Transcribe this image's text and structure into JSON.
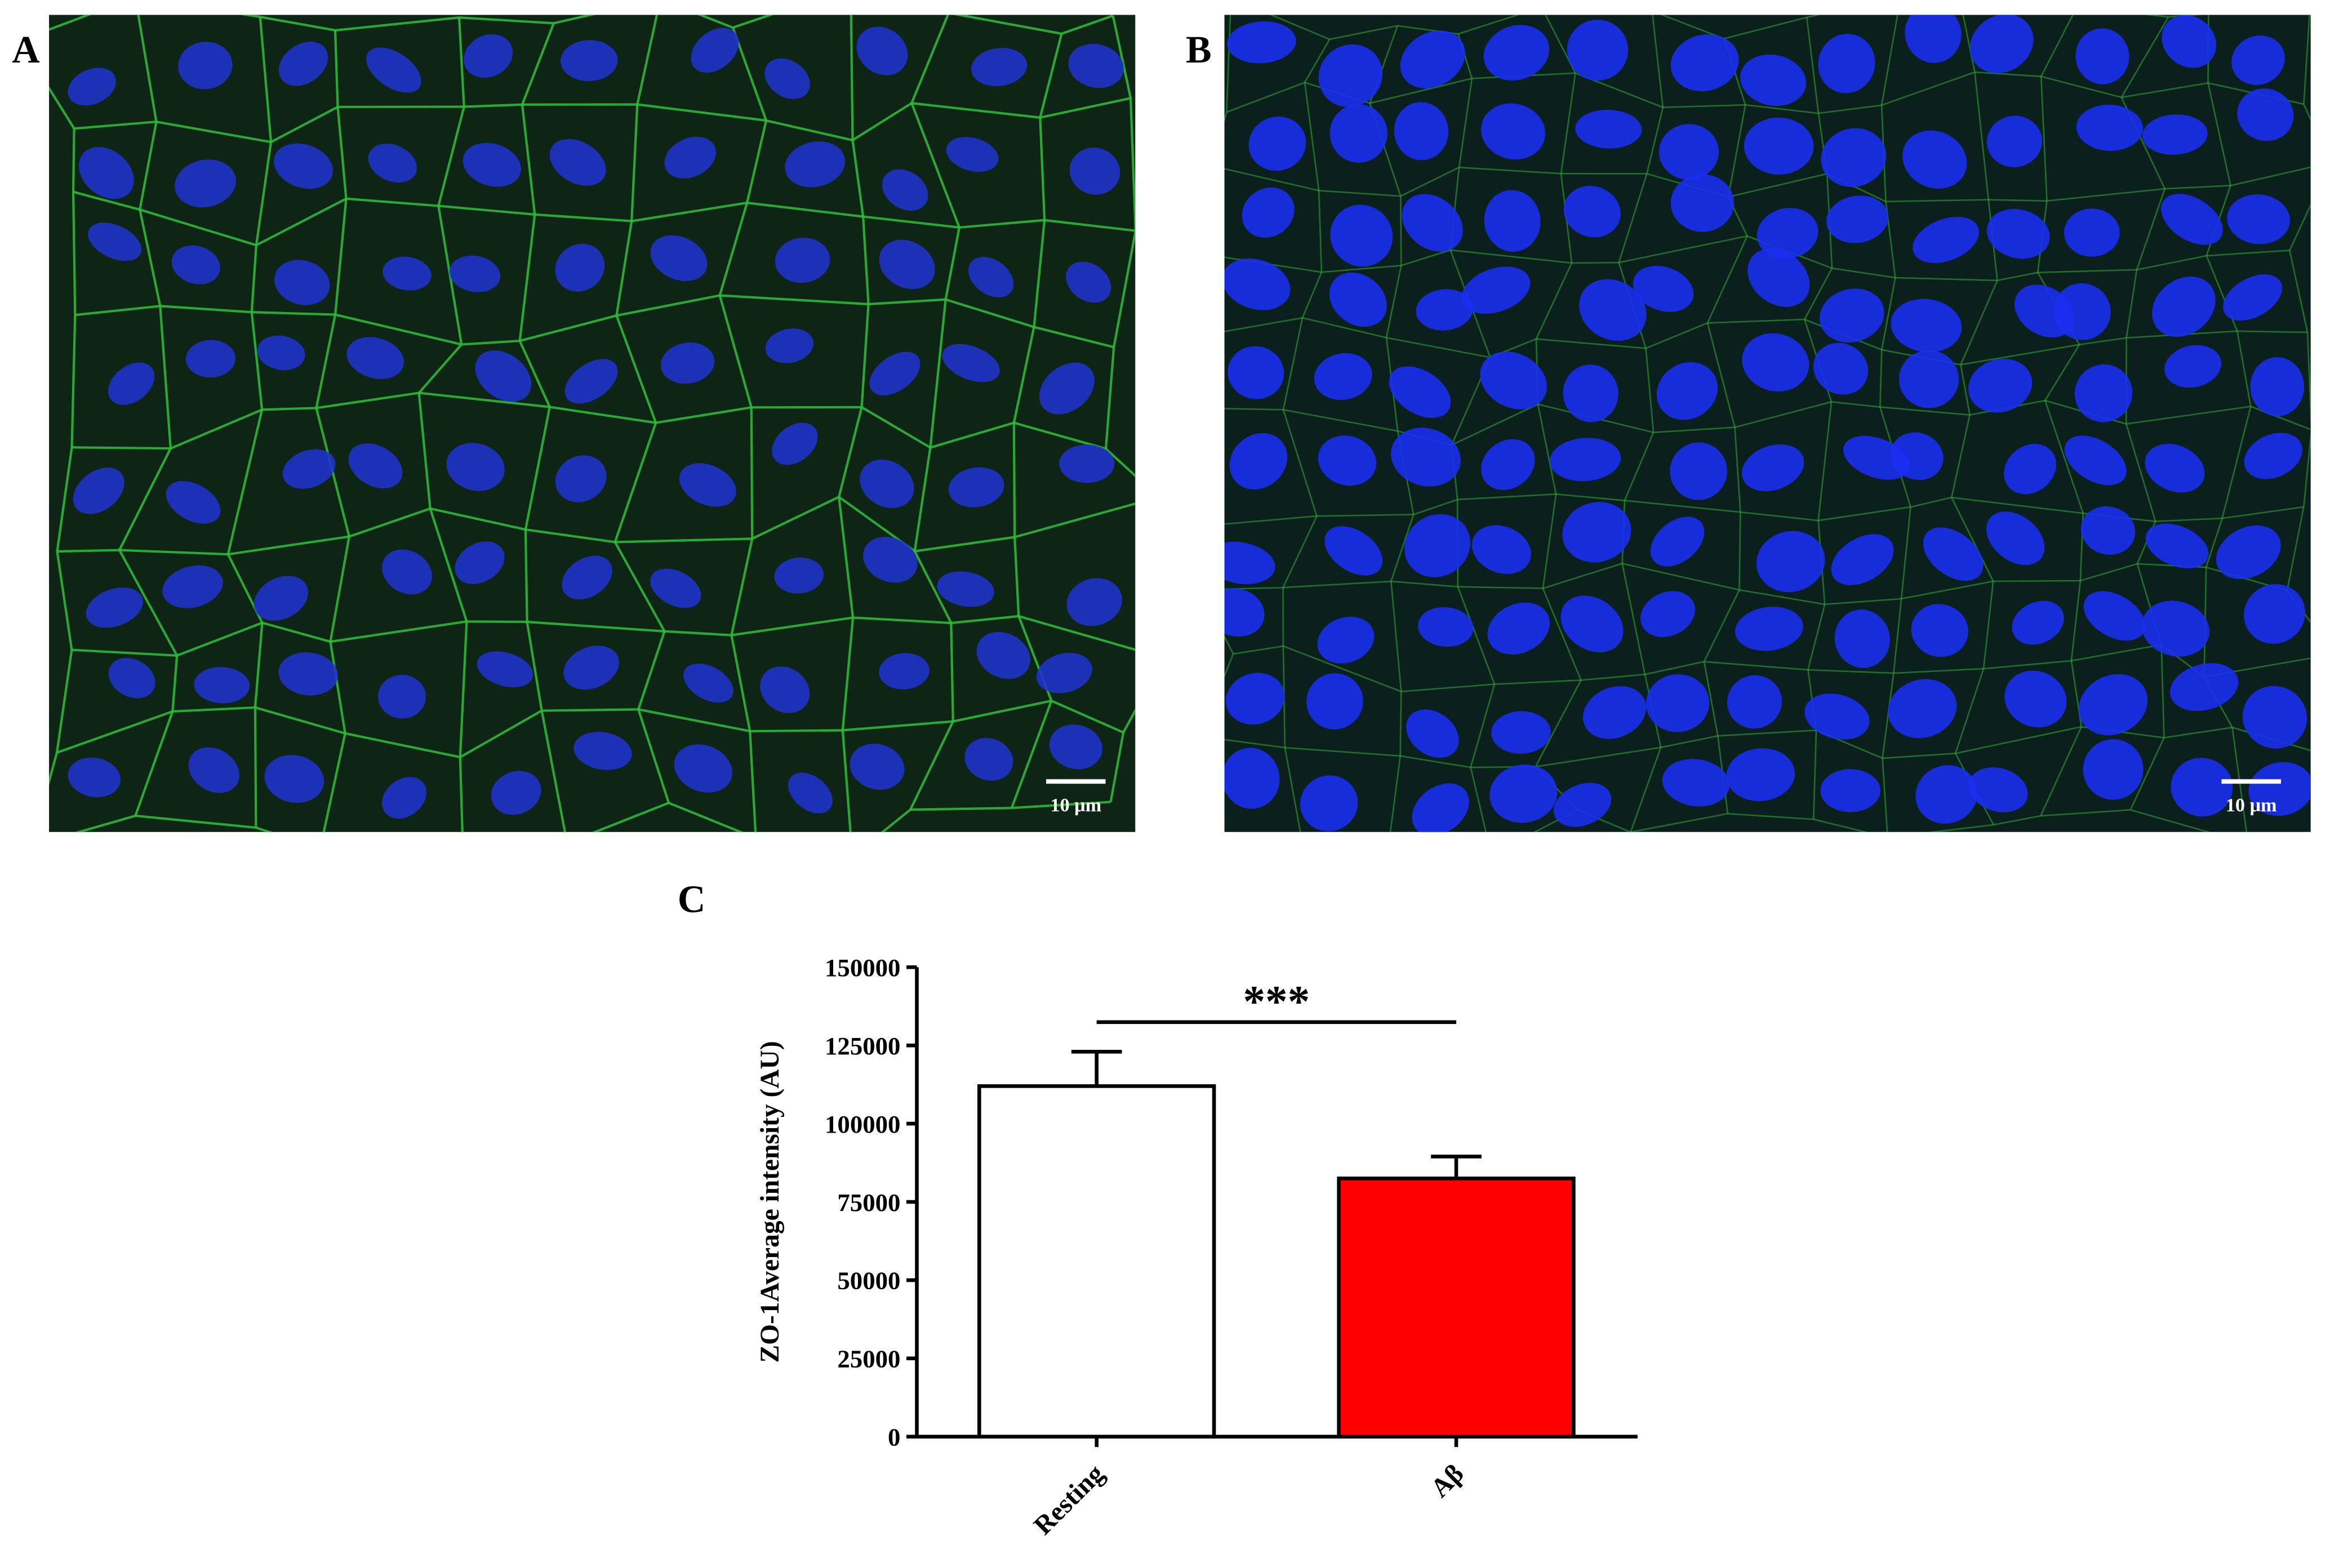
{
  "panels": [
    {
      "label": "A",
      "scale_bar": "10 μm"
    },
    {
      "label": "B",
      "scale_bar": "10 μm"
    }
  ],
  "chart_data": {
    "type": "bar",
    "panel_label": "C",
    "ylabel": "ZO-1Average intensity (AU)",
    "categories": [
      "Resting",
      "Aβ"
    ],
    "values": [
      112000,
      82500
    ],
    "errors": [
      11000,
      7000
    ],
    "colors": [
      "#ffffff",
      "#ff0000"
    ],
    "annotation": "***",
    "ylim": [
      0,
      150000
    ],
    "yticks": [
      0,
      25000,
      50000,
      75000,
      100000,
      125000,
      150000
    ]
  }
}
